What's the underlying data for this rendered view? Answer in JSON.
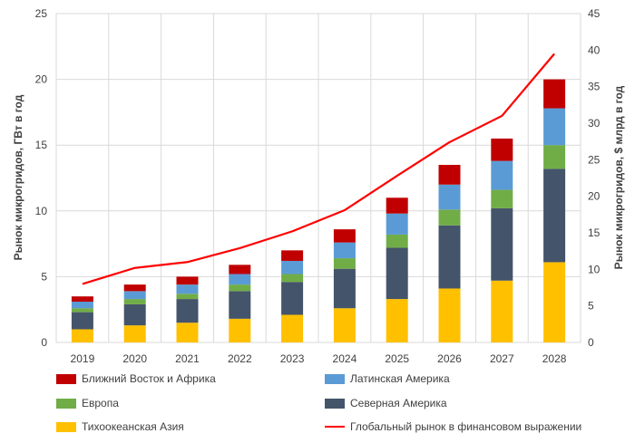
{
  "chart_data": {
    "type": "bar",
    "stacked": true,
    "categories": [
      "2019",
      "2020",
      "2021",
      "2022",
      "2023",
      "2024",
      "2025",
      "2026",
      "2027",
      "2028"
    ],
    "series": [
      {
        "name": "Тихоокеанская Азия",
        "color": "#FFC000",
        "values": [
          1.0,
          1.3,
          1.5,
          1.8,
          2.1,
          2.6,
          3.3,
          4.1,
          4.7,
          6.1
        ]
      },
      {
        "name": "Северная Америка",
        "color": "#44546A",
        "values": [
          1.3,
          1.6,
          1.8,
          2.1,
          2.5,
          3.0,
          3.9,
          4.8,
          5.5,
          7.1
        ]
      },
      {
        "name": "Европа",
        "color": "#70AD47",
        "values": [
          0.3,
          0.4,
          0.4,
          0.5,
          0.6,
          0.8,
          1.0,
          1.2,
          1.4,
          1.8
        ]
      },
      {
        "name": "Латинская Америка",
        "color": "#5B9BD5",
        "values": [
          0.5,
          0.6,
          0.7,
          0.8,
          1.0,
          1.2,
          1.6,
          1.9,
          2.2,
          2.8
        ]
      },
      {
        "name": "Ближний Восток и Африка",
        "color": "#C00000",
        "values": [
          0.4,
          0.5,
          0.6,
          0.7,
          0.8,
          1.0,
          1.2,
          1.5,
          1.7,
          2.2
        ]
      }
    ],
    "line_series": {
      "name": "Глобальный рынок в финансовом выражении",
      "color": "#FF0000",
      "axis": "right",
      "values": [
        8.0,
        10.2,
        11.0,
        12.9,
        15.2,
        18.1,
        22.8,
        27.4,
        31.0,
        39.5
      ]
    },
    "ylabel": "Рынок микрогридов, ГВт в год",
    "ylabel_right": "Рынок микрогридов, $ млрд в год",
    "ylim": [
      0,
      25
    ],
    "yticks": [
      "0",
      "5",
      "10",
      "15",
      "20",
      "25"
    ],
    "ylim_right": [
      0,
      45
    ],
    "yticks_right": [
      "0",
      "5",
      "10",
      "15",
      "20",
      "25",
      "30",
      "35",
      "40",
      "45"
    ],
    "grid": true,
    "legend_position": "bottom"
  },
  "legend": {
    "items": [
      {
        "label": "Ближний Восток и Африка",
        "color": "#C00000",
        "kind": "box"
      },
      {
        "label": "Латинская Америка",
        "color": "#5B9BD5",
        "kind": "box"
      },
      {
        "label": "Европа",
        "color": "#70AD47",
        "kind": "box"
      },
      {
        "label": "Северная Америка",
        "color": "#44546A",
        "kind": "box"
      },
      {
        "label": "Тихоокеанская Азия",
        "color": "#FFC000",
        "kind": "box"
      },
      {
        "label": "Глобальный рынок в финансовом выражении",
        "color": "#FF0000",
        "kind": "line"
      }
    ]
  }
}
